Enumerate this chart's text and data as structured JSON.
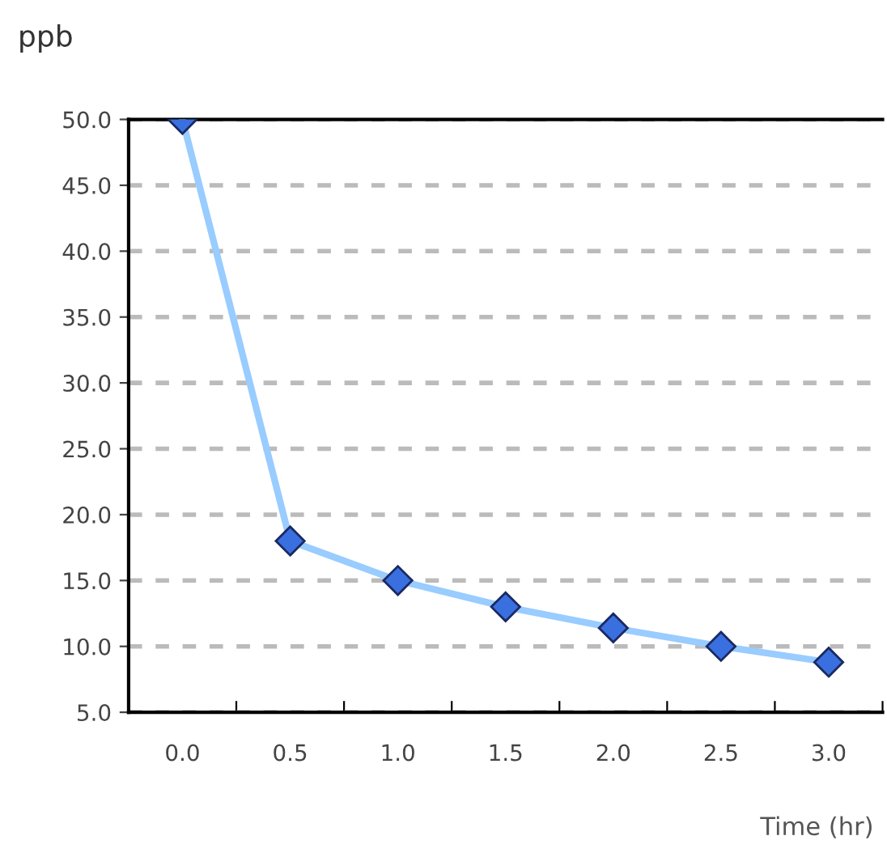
{
  "chart_data": {
    "type": "line",
    "ylabel": "ppb",
    "xlabel": "Time (hr)",
    "categories": [
      "0.0",
      "0.5",
      "1.0",
      "1.5",
      "2.0",
      "2.5",
      "3.0"
    ],
    "series": [
      {
        "color": "#99ccff",
        "values": [
          50,
          18,
          15,
          13,
          11.4,
          10,
          8.8
        ]
      }
    ],
    "ylim": [
      5,
      50
    ],
    "yticks": [
      {
        "value": 5,
        "label": "5.0"
      },
      {
        "value": 10,
        "label": "10.0"
      },
      {
        "value": 15,
        "label": "15.0"
      },
      {
        "value": 20,
        "label": "20.0"
      },
      {
        "value": 25,
        "label": "25.0"
      },
      {
        "value": 30,
        "label": "30.0"
      },
      {
        "value": 35,
        "label": "35.0"
      },
      {
        "value": 40,
        "label": "40.0"
      },
      {
        "value": 45,
        "label": "45.0"
      },
      {
        "value": 50,
        "label": "50.0"
      }
    ],
    "grid": "y",
    "marker": "diamond",
    "line_style": "solid"
  }
}
